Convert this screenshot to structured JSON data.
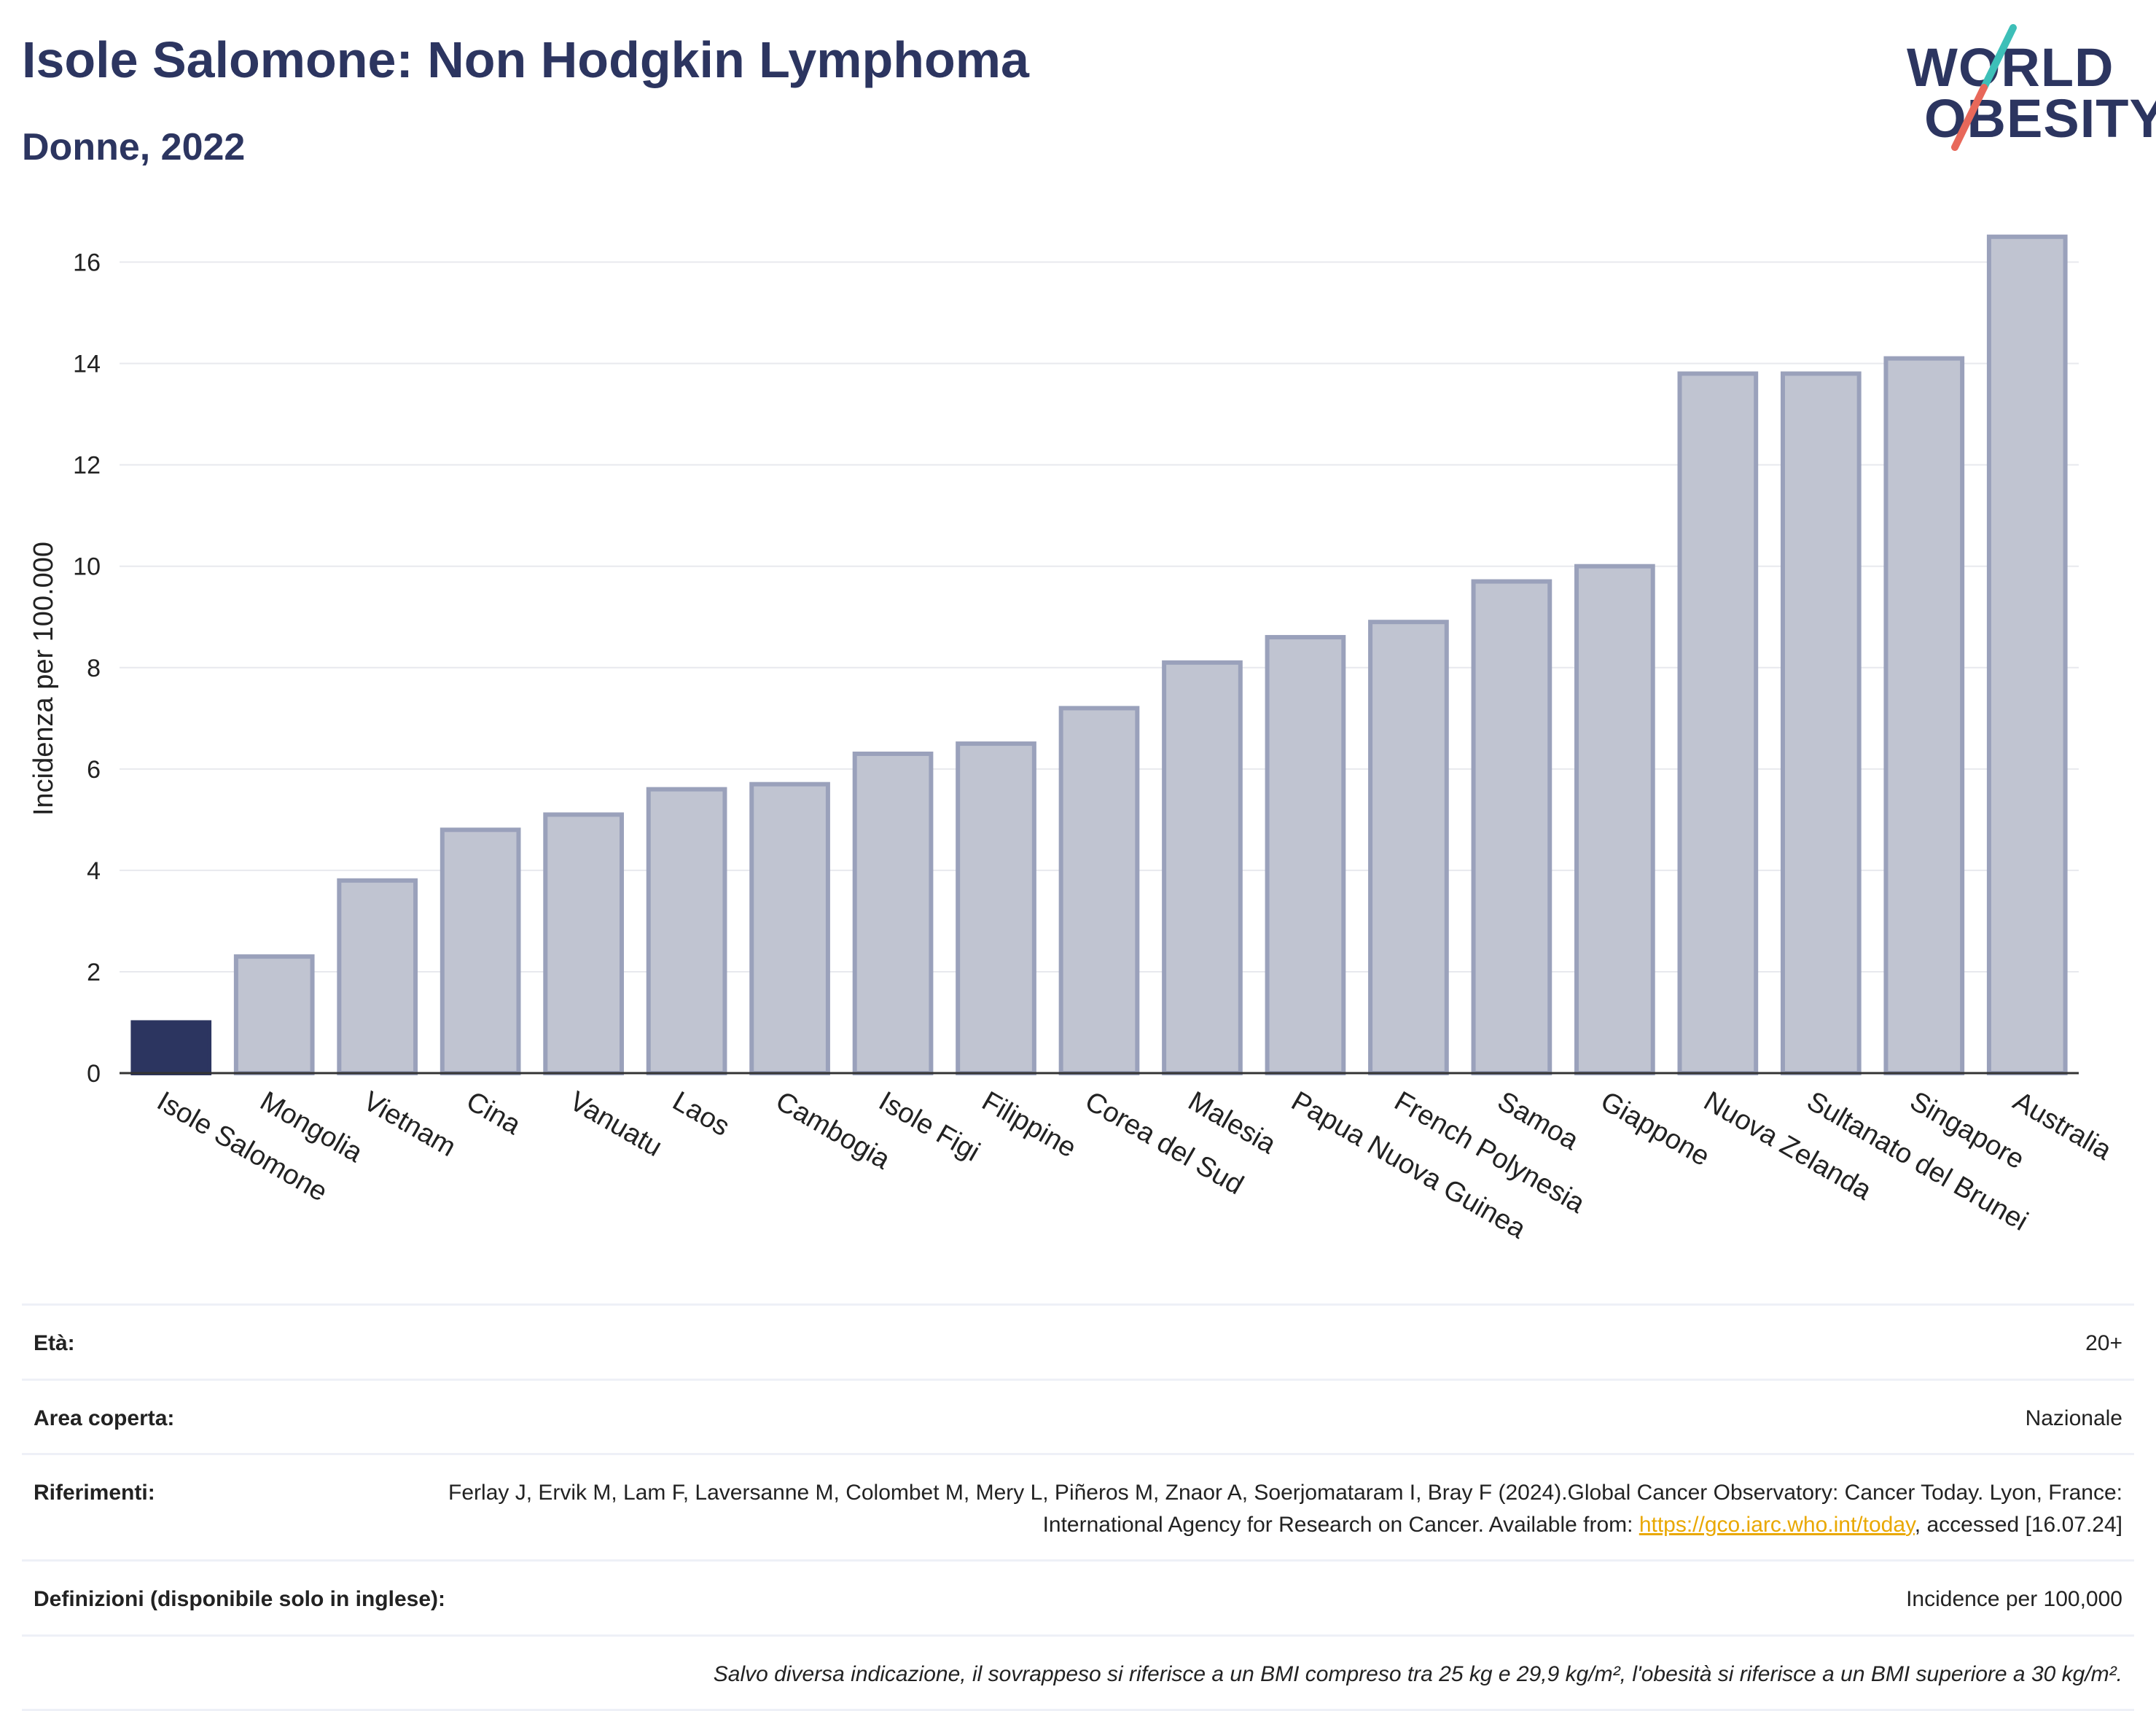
{
  "header": {
    "title": "Isole Salomone: Non Hodgkin Lymphoma",
    "subtitle": "Donne, 2022"
  },
  "logo": {
    "line1": "WORLD",
    "line2": "OBESITY",
    "colors": {
      "text": "#2c3560",
      "slash_top": "#3dbfb8",
      "slash_bottom": "#e8685a"
    }
  },
  "chart_data": {
    "type": "bar",
    "ylabel": "Incidenza per 100.000",
    "ylim": [
      0,
      17
    ],
    "yticks": [
      0,
      2,
      4,
      6,
      8,
      10,
      12,
      14,
      16
    ],
    "grid": true,
    "highlight_index": 0,
    "colors": {
      "highlight": "#2c3560",
      "bar": "#c0c4d1",
      "bar_border": "#9aa1bb",
      "grid": "#e8e9ee"
    },
    "categories": [
      "Isole Salomone",
      "Mongolia",
      "Vietnam",
      "Cina",
      "Vanuatu",
      "Laos",
      "Cambogia",
      "Isole Figi",
      "Filippine",
      "Corea del Sud",
      "Malesia",
      "Papua Nuova Guinea",
      "French Polynesia",
      "Samoa",
      "Giappone",
      "Nuova Zelanda",
      "Sultanato del Brunei",
      "Singapore",
      "Australia"
    ],
    "values": [
      1.0,
      2.3,
      3.8,
      4.8,
      5.1,
      5.6,
      5.7,
      6.3,
      6.5,
      7.2,
      8.1,
      8.6,
      8.9,
      9.7,
      10.0,
      13.8,
      13.8,
      14.1,
      16.5
    ]
  },
  "info": {
    "age_label": "Età:",
    "age_value": "20+",
    "area_label": "Area coperta:",
    "area_value": "Nazionale",
    "ref_label": "Riferimenti:",
    "ref_text_1": "Ferlay J, Ervik M, Lam F, Laversanne M, Colombet M, Mery L, Piñeros M, Znaor A, Soerjomataram I, Bray F (2024).Global Cancer Observatory: Cancer Today. Lyon, France: International Agency for Research on Cancer. Available from: ",
    "ref_link": "https://gco.iarc.who.int/today",
    "ref_text_2": ", accessed [16.07.24]",
    "def_label": "Definizioni (disponibile solo in inglese):",
    "def_value": "Incidence per 100,000",
    "note": "Salvo diversa indicazione, il sovrappeso si riferisce a un BMI compreso tra 25 kg e 29,9 kg/m², l'obesità si riferisce a un BMI superiore a 30 kg/m²."
  }
}
